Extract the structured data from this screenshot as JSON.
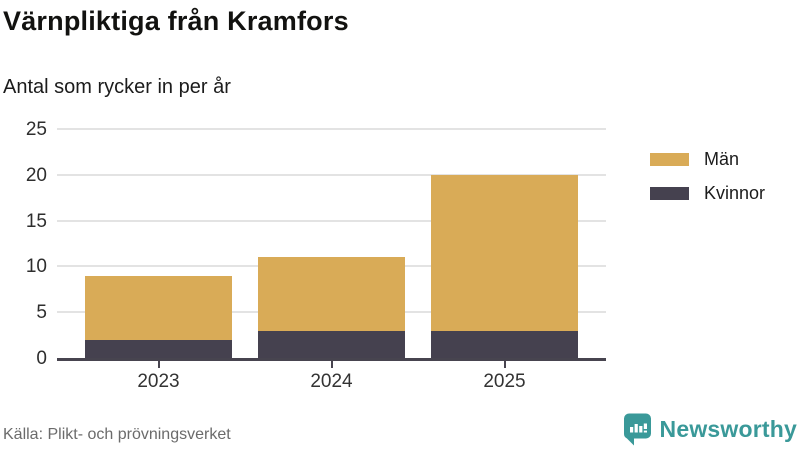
{
  "header": {
    "title": "Värnpliktiga från Kramfors",
    "subtitle": "Antal som rycker in per år"
  },
  "chart_data": {
    "type": "bar",
    "stacked": true,
    "categories": [
      "2023",
      "2024",
      "2025"
    ],
    "series": [
      {
        "name": "Kvinnor",
        "color": "#45414f",
        "values": [
          2,
          3,
          3
        ]
      },
      {
        "name": "Män",
        "color": "#d9ab57",
        "values": [
          7,
          8,
          17
        ]
      }
    ],
    "totals": [
      9,
      11,
      20
    ],
    "ylim": [
      0,
      25
    ],
    "yticks": [
      0,
      5,
      10,
      15,
      20,
      25
    ],
    "grid": true,
    "legend_position": "right",
    "legend_order": [
      "Män",
      "Kvinnor"
    ]
  },
  "footer": {
    "source": "Källa: Plikt- och prövningsverket",
    "brand": "Newsworthy",
    "brand_color": "#3a9999"
  }
}
